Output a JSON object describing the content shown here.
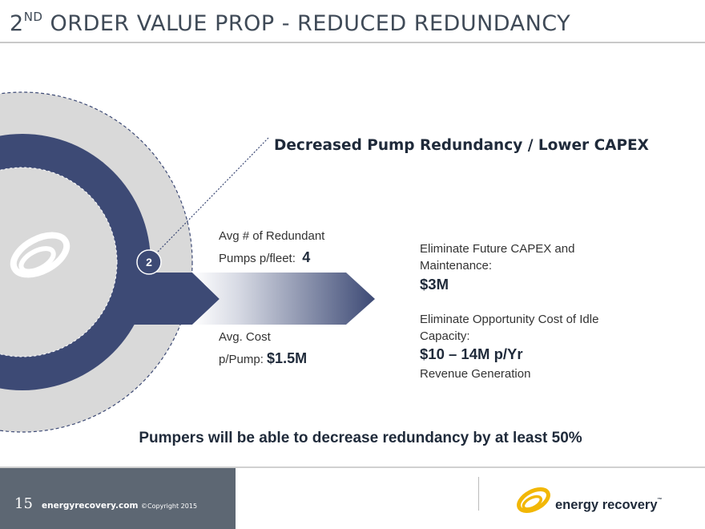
{
  "title": {
    "main": "2",
    "superscript": "ND",
    "rest": " ORDER VALUE PROP - REDUCED REDUNDANCY"
  },
  "subtitle": "Decreased Pump Redundancy / Lower CAPEX",
  "badge": "2",
  "left_top": {
    "line1": "Avg # of Redundant",
    "line2": "Pumps p/fleet:",
    "value": "4"
  },
  "left_bottom": {
    "line1": "Avg. Cost",
    "line2": "p/Pump:",
    "value": "$1.5M"
  },
  "right_top": {
    "line1": "Eliminate Future CAPEX and",
    "line2": "Maintenance:",
    "value": "$3M"
  },
  "right_bottom": {
    "line1": "Eliminate Opportunity Cost of Idle",
    "line2": "Capacity:",
    "value": "$10 – 14M p/Yr",
    "note": "Revenue Generation"
  },
  "summary": "Pumpers will be able to decrease redundancy by at least 50%",
  "footer": {
    "page": "15",
    "site": "energyrecovery.com",
    "copyright": "©Copyright 2015",
    "logo_text": "energy recovery",
    "tm": "™"
  },
  "colors": {
    "navy": "#3d4a75",
    "circle_gray": "#d9d9d9",
    "footer_gray": "#5d6773",
    "logo_yellow": "#f2b705"
  },
  "icons": [
    "energy-recovery-swirl-icon",
    "energy-recovery-logo-icon"
  ]
}
